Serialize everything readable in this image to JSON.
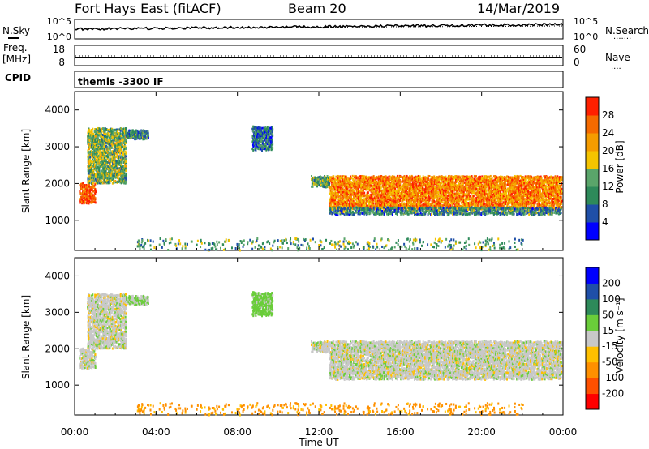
{
  "header": {
    "station": "Fort Hays East (fitACF)",
    "beam": "Beam 20",
    "date": "14/Mar/2019"
  },
  "noise_panel": {
    "left_label": "N.Sky",
    "right_label": "N.Search",
    "right_dots": "·······",
    "left_ticks": [
      "10^5",
      "10^0"
    ],
    "right_ticks": [
      "10^5",
      "10^0"
    ]
  },
  "freq_panel": {
    "left_label_top": "Freq.",
    "left_label_bottom": "[MHz]",
    "right_label": "Nave",
    "right_dots": "····",
    "left_ticks": [
      "18",
      "8"
    ],
    "right_ticks": [
      "60",
      "0"
    ]
  },
  "cpid_panel": {
    "label": "CPID",
    "program": "themis -3300 IF"
  },
  "power_panel": {
    "ylabel": "Slant Range [km]",
    "yticks": [
      "1000",
      "2000",
      "3000",
      "4000"
    ],
    "colorbar_label": "Power [dB]",
    "colorbar_ticks": [
      "4",
      "8",
      "12",
      "16",
      "20",
      "24",
      "28"
    ],
    "colors": [
      "#0000ff",
      "#1f4fa8",
      "#2e8a5a",
      "#5aa56a",
      "#f5c400",
      "#f59c00",
      "#f56a00",
      "#ff2000"
    ]
  },
  "velocity_panel": {
    "ylabel": "Slant Range [km]",
    "yticks": [
      "1000",
      "2000",
      "3000",
      "4000"
    ],
    "colorbar_label": "Velocity [m s⁻¹]",
    "colorbar_ticks": [
      "-200",
      "-100",
      "-50",
      "-15",
      "15",
      "50",
      "100",
      "200"
    ],
    "colors": [
      "#ff0000",
      "#ff5000",
      "#ff9000",
      "#ffc000",
      "#c8c8c8",
      "#6acd3a",
      "#2e8a5a",
      "#1f4fa8",
      "#0000ff"
    ]
  },
  "xaxis": {
    "ticks": [
      "00:00",
      "04:00",
      "08:00",
      "12:00",
      "16:00",
      "20:00",
      "00:00"
    ],
    "label": "Time UT"
  },
  "chart_data": {
    "type": "heatmap",
    "x_range_hours": [
      0,
      24
    ],
    "y_range_km": [
      180,
      4500
    ],
    "regions": [
      {
        "t0": 0.2,
        "t1": 1.0,
        "r0": 1450,
        "r1": 2000,
        "power": 28,
        "velocity": 0
      },
      {
        "t0": 0.6,
        "t1": 2.5,
        "r0": 2000,
        "r1": 3500,
        "power": 14,
        "velocity": 0
      },
      {
        "t0": 2.5,
        "t1": 3.6,
        "r0": 3200,
        "r1": 3450,
        "power": 10,
        "velocity": 15
      },
      {
        "t0": 8.7,
        "t1": 9.7,
        "r0": 2900,
        "r1": 3550,
        "power": 8,
        "velocity": 30
      },
      {
        "t0": 11.6,
        "t1": 12.5,
        "r0": 1900,
        "r1": 2200,
        "power": 12,
        "velocity": 0
      },
      {
        "t0": 12.5,
        "t1": 23.9,
        "r0": 1300,
        "r1": 2200,
        "power": 24,
        "velocity": 0
      },
      {
        "t0": 12.5,
        "t1": 23.9,
        "r0": 1150,
        "r1": 1350,
        "power": 10,
        "velocity": 0
      },
      {
        "t0": 3.0,
        "t1": 22.0,
        "r0": 180,
        "r1": 500,
        "power": 12,
        "velocity": -60
      }
    ]
  }
}
